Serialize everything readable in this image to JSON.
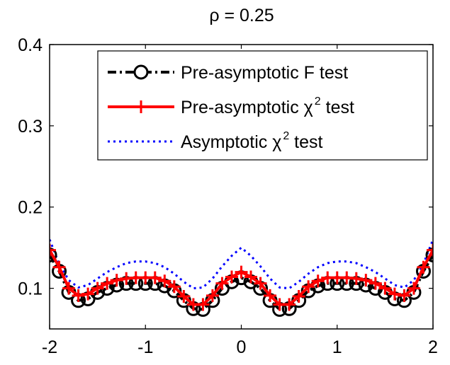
{
  "chart_data": {
    "type": "line",
    "title": "ρ = 0.25",
    "xlabel": "",
    "ylabel": "",
    "xlim": [
      -2,
      2
    ],
    "ylim": [
      0.05,
      0.4
    ],
    "xticks": [
      -2,
      -1,
      0,
      1,
      2
    ],
    "xtick_labels": [
      "-2",
      "-1",
      "0",
      "1",
      "2"
    ],
    "yticks": [
      0.1,
      0.2,
      0.3,
      0.4
    ],
    "ytick_labels": [
      "0.1",
      "0.2",
      "0.3",
      "0.4"
    ],
    "grid": false,
    "legend_position": "top-right",
    "x": [
      -2.0,
      -1.9,
      -1.8,
      -1.7,
      -1.6,
      -1.5,
      -1.4,
      -1.3,
      -1.2,
      -1.1,
      -1.0,
      -0.9,
      -0.8,
      -0.7,
      -0.6,
      -0.5,
      -0.4,
      -0.3,
      -0.2,
      -0.1,
      0.0,
      0.1,
      0.2,
      0.3,
      0.4,
      0.5,
      0.6,
      0.7,
      0.8,
      0.9,
      1.0,
      1.1,
      1.2,
      1.3,
      1.4,
      1.5,
      1.6,
      1.7,
      1.8,
      1.9,
      2.0
    ],
    "series": [
      {
        "name": "Pre-asymptotic F test",
        "color": "#000000",
        "style": "dash-dot-circle",
        "values": [
          0.141,
          0.121,
          0.095,
          0.085,
          0.087,
          0.095,
          0.1,
          0.104,
          0.106,
          0.106,
          0.106,
          0.106,
          0.103,
          0.097,
          0.085,
          0.075,
          0.074,
          0.085,
          0.1,
          0.108,
          0.113,
          0.108,
          0.1,
          0.085,
          0.074,
          0.075,
          0.085,
          0.097,
          0.103,
          0.106,
          0.106,
          0.106,
          0.106,
          0.104,
          0.1,
          0.095,
          0.087,
          0.085,
          0.095,
          0.121,
          0.141
        ]
      },
      {
        "name": "Pre-asymptotic χ2 test",
        "color": "#ff0000",
        "style": "solid-plus",
        "values": [
          0.147,
          0.126,
          0.1,
          0.091,
          0.093,
          0.1,
          0.106,
          0.11,
          0.112,
          0.113,
          0.113,
          0.113,
          0.109,
          0.102,
          0.09,
          0.08,
          0.08,
          0.091,
          0.106,
          0.114,
          0.12,
          0.114,
          0.106,
          0.091,
          0.08,
          0.08,
          0.09,
          0.102,
          0.109,
          0.113,
          0.113,
          0.113,
          0.112,
          0.11,
          0.106,
          0.1,
          0.093,
          0.091,
          0.1,
          0.126,
          0.147
        ]
      },
      {
        "name": "Asymptotic χ2 test",
        "color": "#0000ff",
        "style": "dotted",
        "values": [
          0.16,
          0.13,
          0.11,
          0.101,
          0.104,
          0.112,
          0.12,
          0.126,
          0.131,
          0.133,
          0.133,
          0.131,
          0.126,
          0.118,
          0.108,
          0.1,
          0.101,
          0.112,
          0.127,
          0.14,
          0.15,
          0.14,
          0.127,
          0.112,
          0.101,
          0.1,
          0.108,
          0.118,
          0.126,
          0.131,
          0.133,
          0.133,
          0.131,
          0.126,
          0.12,
          0.112,
          0.104,
          0.101,
          0.11,
          0.13,
          0.16
        ]
      }
    ],
    "legend_entries": [
      {
        "prefix": "Pre-asymptotic F test",
        "symbol": "",
        "sup": "",
        "suffix": ""
      },
      {
        "prefix": "Pre-asymptotic ",
        "symbol": "χ",
        "sup": "2",
        "suffix": " test"
      },
      {
        "prefix": "Asymptotic ",
        "symbol": "χ",
        "sup": "2",
        "suffix": " test"
      }
    ]
  }
}
